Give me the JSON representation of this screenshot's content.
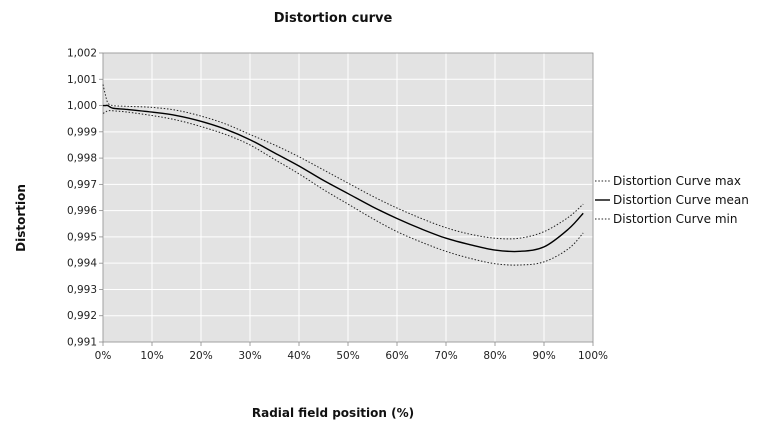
{
  "chart_data": {
    "type": "line",
    "title": "Distortion curve",
    "xlabel": "Radial field position (%)",
    "ylabel": "Distortion",
    "xlim": [
      0,
      100
    ],
    "ylim": [
      0.991,
      1.002
    ],
    "x_ticks": [
      0,
      10,
      20,
      30,
      40,
      50,
      60,
      70,
      80,
      90,
      100
    ],
    "x_tick_labels": [
      "0%",
      "10%",
      "20%",
      "30%",
      "40%",
      "50%",
      "60%",
      "70%",
      "80%",
      "90%",
      "100%"
    ],
    "y_ticks": [
      0.991,
      0.992,
      0.993,
      0.994,
      0.995,
      0.996,
      0.997,
      0.998,
      0.999,
      1.0,
      1.001,
      1.002
    ],
    "y_tick_labels": [
      "0,991",
      "0,992",
      "0,993",
      "0,994",
      "0,995",
      "0,996",
      "0,997",
      "0,998",
      "0,999",
      "1,000",
      "1,001",
      "1,002"
    ],
    "grid": true,
    "plot_background": "#e3e3e3",
    "grid_color": "#ffffff",
    "legend_position": "right",
    "x": [
      0,
      0.5,
      1,
      2,
      5,
      10,
      15,
      20,
      25,
      30,
      35,
      40,
      45,
      50,
      55,
      60,
      65,
      70,
      75,
      80,
      85,
      90,
      95,
      98
    ],
    "series": [
      {
        "name": "Distortion Curve max",
        "line_style": "dotted",
        "color": "#222222",
        "values": [
          1.0008,
          1.0004,
          1.0001,
          1.0,
          0.99997,
          0.99993,
          0.99982,
          0.9996,
          0.9993,
          0.9989,
          0.9985,
          0.99805,
          0.99755,
          0.99705,
          0.99655,
          0.9961,
          0.9957,
          0.99535,
          0.9951,
          0.99495,
          0.99495,
          0.9952,
          0.99575,
          0.99625
        ]
      },
      {
        "name": "Distortion Curve mean",
        "line_style": "solid",
        "color": "#000000",
        "values": [
          1.0,
          1.0,
          1.0,
          0.9999,
          0.99985,
          0.99975,
          0.99962,
          0.9994,
          0.9991,
          0.9987,
          0.9982,
          0.9977,
          0.99715,
          0.99665,
          0.99615,
          0.9957,
          0.9953,
          0.99495,
          0.9947,
          0.9945,
          0.99445,
          0.99462,
          0.9953,
          0.9959
        ]
      },
      {
        "name": "Distortion Curve min",
        "line_style": "dotted",
        "color": "#222222",
        "values": [
          0.9997,
          0.99975,
          0.9998,
          0.9998,
          0.99975,
          0.99962,
          0.99945,
          0.9992,
          0.9989,
          0.9985,
          0.99795,
          0.9974,
          0.9968,
          0.99625,
          0.9957,
          0.9952,
          0.9948,
          0.99445,
          0.99418,
          0.99398,
          0.99393,
          0.99405,
          0.99455,
          0.99515
        ]
      }
    ]
  }
}
